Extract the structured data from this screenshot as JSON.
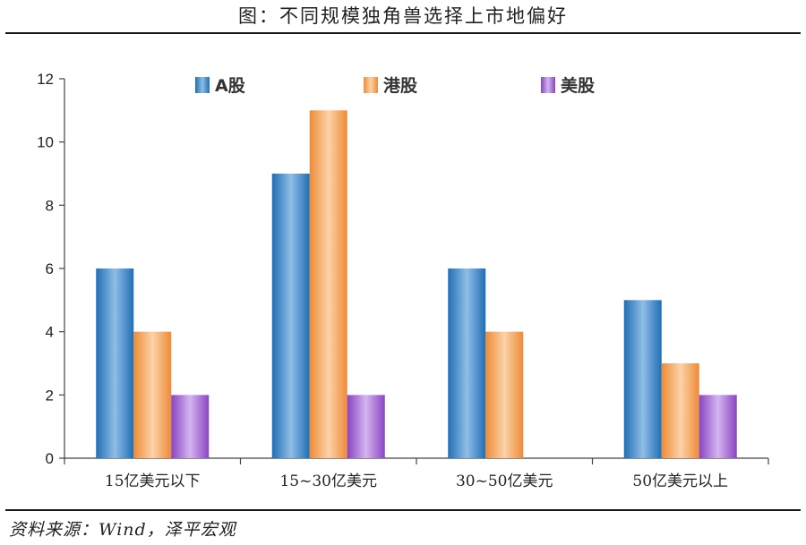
{
  "title": "图：不同规模独角兽选择上市地偏好",
  "source": "资料来源：Wind，泽平宏观",
  "colors": {
    "a_share": "#3a82c4",
    "hk_share": "#f39a4e",
    "us_share": "#9a5cc9"
  },
  "chart_data": {
    "type": "bar",
    "title": "图：不同规模独角兽选择上市地偏好",
    "xlabel": "",
    "ylabel": "",
    "ylim": [
      0,
      12
    ],
    "yticks": [
      0,
      2,
      4,
      6,
      8,
      10,
      12
    ],
    "grid": false,
    "legend_position": "top",
    "categories": [
      "15亿美元以下",
      "15~30亿美元",
      "30~50亿美元",
      "50亿美元以上"
    ],
    "series": [
      {
        "name": "A股",
        "values": [
          6,
          9,
          6,
          5
        ]
      },
      {
        "name": "港股",
        "values": [
          4,
          11,
          4,
          3
        ]
      },
      {
        "name": "美股",
        "values": [
          2,
          2,
          0,
          2
        ]
      }
    ]
  }
}
